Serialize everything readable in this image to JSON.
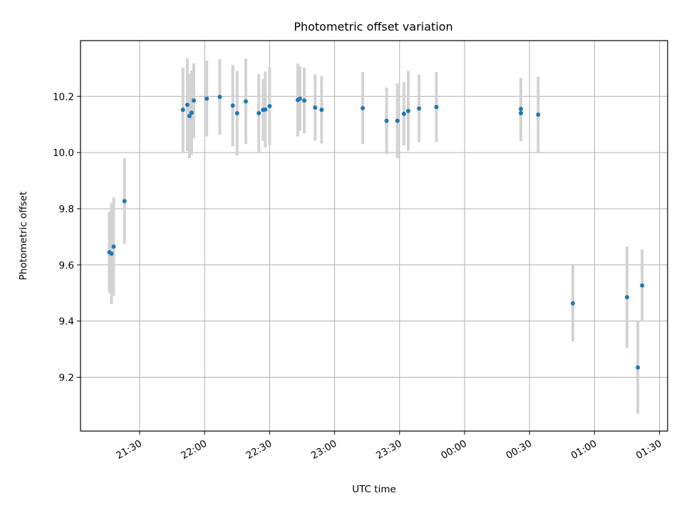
{
  "chart_data": {
    "type": "scatter",
    "title": "Photometric offset variation",
    "xlabel": "UTC time",
    "ylabel": "Photometric offset",
    "x_ticks": [
      "21:30",
      "22:00",
      "22:30",
      "23:00",
      "23:30",
      "00:00",
      "00:30",
      "01:00",
      "01:30"
    ],
    "y_ticks": [
      "9.2",
      "9.4",
      "9.6",
      "9.8",
      "10.0",
      "10.2"
    ],
    "grid": true,
    "marker_color": "#1f77b4",
    "errorbar_color": "#d3d3d3",
    "points": [
      {
        "t": "21:16",
        "y": 9.645,
        "err": 0.145
      },
      {
        "t": "21:17",
        "y": 9.64,
        "err": 0.18
      },
      {
        "t": "21:18",
        "y": 9.665,
        "err": 0.175
      },
      {
        "t": "21:23",
        "y": 9.827,
        "err": 0.153
      },
      {
        "t": "21:50",
        "y": 10.152,
        "err": 0.15
      },
      {
        "t": "21:52",
        "y": 10.17,
        "err": 0.165
      },
      {
        "t": "21:53",
        "y": 10.13,
        "err": 0.15
      },
      {
        "t": "21:54",
        "y": 10.142,
        "err": 0.15
      },
      {
        "t": "21:55",
        "y": 10.185,
        "err": 0.133
      },
      {
        "t": "22:01",
        "y": 10.192,
        "err": 0.135
      },
      {
        "t": "22:07",
        "y": 10.198,
        "err": 0.135
      },
      {
        "t": "22:13",
        "y": 10.167,
        "err": 0.145
      },
      {
        "t": "22:15",
        "y": 10.14,
        "err": 0.15
      },
      {
        "t": "22:19",
        "y": 10.182,
        "err": 0.152
      },
      {
        "t": "22:25",
        "y": 10.14,
        "err": 0.14
      },
      {
        "t": "22:27",
        "y": 10.152,
        "err": 0.11
      },
      {
        "t": "22:28",
        "y": 10.153,
        "err": 0.135
      },
      {
        "t": "22:30",
        "y": 10.165,
        "err": 0.14
      },
      {
        "t": "22:43",
        "y": 10.187,
        "err": 0.13
      },
      {
        "t": "22:44",
        "y": 10.192,
        "err": 0.115
      },
      {
        "t": "22:46",
        "y": 10.185,
        "err": 0.117
      },
      {
        "t": "22:51",
        "y": 10.16,
        "err": 0.118
      },
      {
        "t": "22:54",
        "y": 10.152,
        "err": 0.12
      },
      {
        "t": "23:13",
        "y": 10.158,
        "err": 0.128
      },
      {
        "t": "23:24",
        "y": 10.113,
        "err": 0.118
      },
      {
        "t": "23:29",
        "y": 10.113,
        "err": 0.133
      },
      {
        "t": "23:32",
        "y": 10.138,
        "err": 0.113
      },
      {
        "t": "23:34",
        "y": 10.148,
        "err": 0.142
      },
      {
        "t": "23:39",
        "y": 10.157,
        "err": 0.12
      },
      {
        "t": "23:47",
        "y": 10.162,
        "err": 0.125
      },
      {
        "t": "00:26",
        "y": 10.155,
        "err": 0.11
      },
      {
        "t": "00:26",
        "y": 10.14,
        "err": 0.1
      },
      {
        "t": "00:34",
        "y": 10.135,
        "err": 0.135
      },
      {
        "t": "00:50",
        "y": 9.463,
        "err": 0.135
      },
      {
        "t": "01:15",
        "y": 9.485,
        "err": 0.18
      },
      {
        "t": "01:20",
        "y": 9.235,
        "err": 0.165
      },
      {
        "t": "01:22",
        "y": 9.527,
        "err": 0.128
      }
    ]
  }
}
